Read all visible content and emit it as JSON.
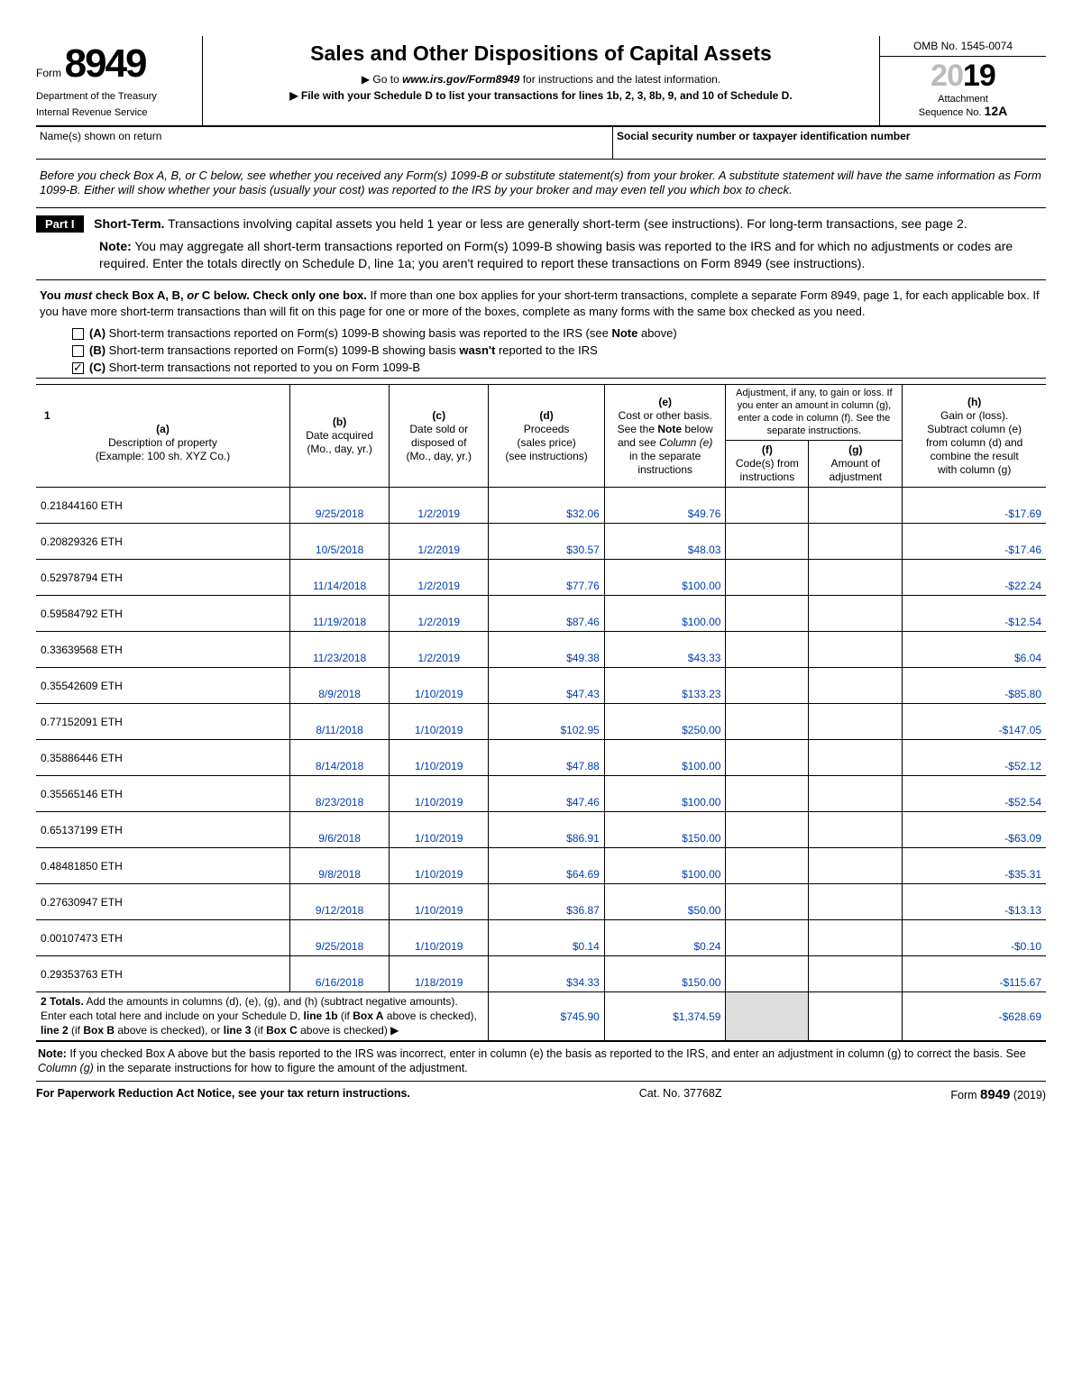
{
  "header": {
    "form_label": "Form",
    "form_number": "8949",
    "dept1": "Department of the Treasury",
    "dept2": "Internal Revenue Service",
    "title": "Sales and Other Dispositions of Capital Assets",
    "instr1_prefix": "▶ Go to ",
    "instr1_link": "www.irs.gov/Form8949",
    "instr1_suffix": " for instructions and the latest information.",
    "instr2": "▶ File with your Schedule D to list your transactions for lines 1b, 2, 3, 8b, 9, and 10 of Schedule D.",
    "omb": "OMB No. 1545-0074",
    "year_gray": "20",
    "year_bold": "19",
    "attach1": "Attachment",
    "attach2_prefix": "Sequence No. ",
    "attach2_num": "12A"
  },
  "name_row": {
    "name_label": "Name(s) shown on return",
    "ssn_label": "Social security number or taxpayer identification number"
  },
  "intro": "Before you check Box A, B, or C below, see whether you received any Form(s) 1099-B or substitute statement(s) from your broker. A substitute statement will have the same information as Form 1099-B. Either will show whether your basis (usually your cost) was reported to the IRS by your broker and may even tell you which box to check.",
  "part1": {
    "label": "Part I",
    "title_bold": "Short-Term.",
    "title_rest": " Transactions involving capital assets you held 1 year or less are generally short-term (see instructions). For long-term transactions, see page 2.",
    "note_bold": "Note:",
    "note_rest": " You may aggregate all short-term transactions reported on Form(s) 1099-B showing basis was reported to the IRS and for which no adjustments or codes are required. Enter the totals directly on Schedule D, line 1a; you aren't required to report these transactions on Form 8949 (see instructions)."
  },
  "check_instr": {
    "line1_a": "You ",
    "line1_b": "must",
    "line1_c": " check Box A, B, ",
    "line1_d": "or",
    "line1_e": " C below. Check only one box.",
    "line1_rest": " If more than one box applies for your short-term transactions, complete a separate Form 8949, page 1, for each applicable box. If you have more short-term transactions than will fit on this page for one or more of the boxes, complete as many forms with the same box checked as you need.",
    "boxA_b": "(A)",
    "boxA": " Short-term transactions reported on Form(s) 1099-B showing basis was reported to the IRS (see ",
    "boxA_note": "Note",
    "boxA_end": " above)",
    "boxB_b": "(B)",
    "boxB": " Short-term transactions reported on Form(s) 1099-B showing basis ",
    "boxB_wasnt": "wasn't",
    "boxB_end": " reported to the IRS",
    "boxC_b": "(C)",
    "boxC": " Short-term transactions not reported to you on Form 1099-B"
  },
  "checkboxes": {
    "A": false,
    "B": false,
    "C": true
  },
  "cols": {
    "num": "1",
    "a_b": "(a)",
    "a": "Description of property\n(Example: 100 sh. XYZ Co.)",
    "b_b": "(b)",
    "b": "Date acquired\n(Mo., day, yr.)",
    "c_b": "(c)",
    "c": "Date sold or\ndisposed of\n(Mo., day, yr.)",
    "d_b": "(d)",
    "d": "Proceeds\n(sales price)\n(see instructions)",
    "e_b": "(e)",
    "e1": "Cost or other basis.\nSee the ",
    "e_note": "Note",
    "e2": " below\nand see ",
    "e_col": "Column (e)",
    "e3": "\nin the separate\ninstructions",
    "fg_top": "Adjustment, if any, to gain or loss.\nIf you enter an amount in column (g),\nenter a code in column (f).\nSee the separate instructions.",
    "f_b": "(f)",
    "f": "Code(s) from\ninstructions",
    "g_b": "(g)",
    "g": "Amount of\nadjustment",
    "h_b": "(h)",
    "h": "Gain or (loss).\nSubtract column (e)\nfrom column (d) and\ncombine the result\nwith column (g)"
  },
  "rows": [
    {
      "desc": "0.21844160 ETH",
      "acq": "9/25/2018",
      "sold": "1/2/2019",
      "proc": "$32.06",
      "basis": "$49.76",
      "f": "",
      "g": "",
      "gain": "-$17.69"
    },
    {
      "desc": "0.20829326 ETH",
      "acq": "10/5/2018",
      "sold": "1/2/2019",
      "proc": "$30.57",
      "basis": "$48.03",
      "f": "",
      "g": "",
      "gain": "-$17.46"
    },
    {
      "desc": "0.52978794 ETH",
      "acq": "11/14/2018",
      "sold": "1/2/2019",
      "proc": "$77.76",
      "basis": "$100.00",
      "f": "",
      "g": "",
      "gain": "-$22.24"
    },
    {
      "desc": "0.59584792 ETH",
      "acq": "11/19/2018",
      "sold": "1/2/2019",
      "proc": "$87.46",
      "basis": "$100.00",
      "f": "",
      "g": "",
      "gain": "-$12.54"
    },
    {
      "desc": "0.33639568 ETH",
      "acq": "11/23/2018",
      "sold": "1/2/2019",
      "proc": "$49.38",
      "basis": "$43.33",
      "f": "",
      "g": "",
      "gain": "$6.04"
    },
    {
      "desc": "0.35542609 ETH",
      "acq": "8/9/2018",
      "sold": "1/10/2019",
      "proc": "$47.43",
      "basis": "$133.23",
      "f": "",
      "g": "",
      "gain": "-$85.80"
    },
    {
      "desc": "0.77152091 ETH",
      "acq": "8/11/2018",
      "sold": "1/10/2019",
      "proc": "$102.95",
      "basis": "$250.00",
      "f": "",
      "g": "",
      "gain": "-$147.05"
    },
    {
      "desc": "0.35886446 ETH",
      "acq": "8/14/2018",
      "sold": "1/10/2019",
      "proc": "$47.88",
      "basis": "$100.00",
      "f": "",
      "g": "",
      "gain": "-$52.12"
    },
    {
      "desc": "0.35565146 ETH",
      "acq": "8/23/2018",
      "sold": "1/10/2019",
      "proc": "$47.46",
      "basis": "$100.00",
      "f": "",
      "g": "",
      "gain": "-$52.54"
    },
    {
      "desc": "0.65137199 ETH",
      "acq": "9/6/2018",
      "sold": "1/10/2019",
      "proc": "$86.91",
      "basis": "$150.00",
      "f": "",
      "g": "",
      "gain": "-$63.09"
    },
    {
      "desc": "0.48481850 ETH",
      "acq": "9/8/2018",
      "sold": "1/10/2019",
      "proc": "$64.69",
      "basis": "$100.00",
      "f": "",
      "g": "",
      "gain": "-$35.31"
    },
    {
      "desc": "0.27630947 ETH",
      "acq": "9/12/2018",
      "sold": "1/10/2019",
      "proc": "$36.87",
      "basis": "$50.00",
      "f": "",
      "g": "",
      "gain": "-$13.13"
    },
    {
      "desc": "0.00107473 ETH",
      "acq": "9/25/2018",
      "sold": "1/10/2019",
      "proc": "$0.14",
      "basis": "$0.24",
      "f": "",
      "g": "",
      "gain": "-$0.10"
    },
    {
      "desc": "0.29353763 ETH",
      "acq": "6/16/2018",
      "sold": "1/18/2019",
      "proc": "$34.33",
      "basis": "$150.00",
      "f": "",
      "g": "",
      "gain": "-$115.67"
    }
  ],
  "totals": {
    "label_num": "2",
    "label_bold": "Totals.",
    "label_text": " Add the amounts in columns (d), (e), (g), and (h) (subtract negative amounts). Enter each total here and include on your Schedule D, ",
    "l1b": "line 1b",
    "l1b_if": " (if ",
    "boxA": "Box A",
    "l2_txt": " above is checked), ",
    "l2": "line 2",
    "l2_if": " (if ",
    "boxB": "Box B",
    "l3_txt": " above is checked), or ",
    "l3": "line 3",
    "l3_if": " (if ",
    "boxC": "Box C",
    "l3_end": " above is checked)  ▶",
    "proc": "$745.90",
    "basis": "$1,374.59",
    "f": "",
    "g": "",
    "gain": "-$628.69"
  },
  "footer_note": {
    "bold": "Note:",
    "text": " If you checked Box A above but the basis reported to the IRS was incorrect, enter in column (e) the basis as reported to the IRS, and enter an adjustment in column (g) to correct the basis. See ",
    "col_g": "Column (g)",
    "text2": " in the separate instructions for how to figure the amount of the adjustment."
  },
  "bottom": {
    "left": "For Paperwork Reduction Act Notice, see your tax return instructions.",
    "mid": "Cat. No. 37768Z",
    "right_prefix": "Form ",
    "right_num": "8949",
    "right_suffix": " (2019)"
  }
}
